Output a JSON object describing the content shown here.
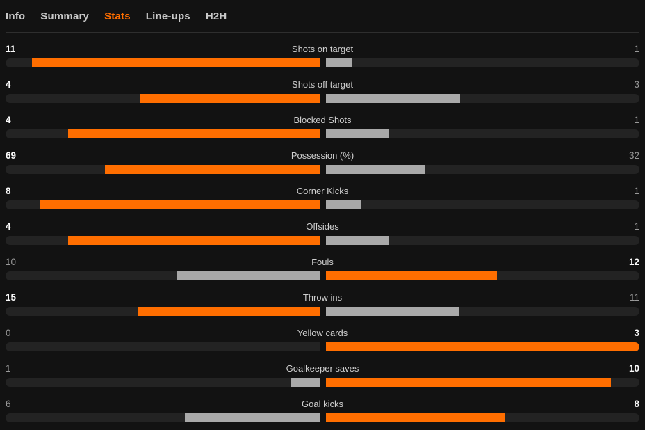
{
  "tabs": [
    {
      "label": "Info",
      "active": false
    },
    {
      "label": "Summary",
      "active": false
    },
    {
      "label": "Stats",
      "active": true
    },
    {
      "label": "Line-ups",
      "active": false
    },
    {
      "label": "H2H",
      "active": false
    }
  ],
  "stats": {
    "rows": [
      {
        "label": "Shots on target",
        "home": 11,
        "away": 1
      },
      {
        "label": "Shots off target",
        "home": 4,
        "away": 3
      },
      {
        "label": "Blocked Shots",
        "home": 4,
        "away": 1
      },
      {
        "label": "Possession (%)",
        "home": 69,
        "away": 32
      },
      {
        "label": "Corner Kicks",
        "home": 8,
        "away": 1
      },
      {
        "label": "Offsides",
        "home": 4,
        "away": 1
      },
      {
        "label": "Fouls",
        "home": 10,
        "away": 12
      },
      {
        "label": "Throw ins",
        "home": 15,
        "away": 11
      },
      {
        "label": "Yellow cards",
        "home": 0,
        "away": 3
      },
      {
        "label": "Goalkeeper saves",
        "home": 1,
        "away": 10
      },
      {
        "label": "Goal kicks",
        "home": 6,
        "away": 8
      }
    ]
  },
  "colors": {
    "background": "#121212",
    "track": "#232323",
    "divider": "#2e2e2e",
    "accent_orange": "#ff6e00",
    "bar_gray": "#a9a9a9",
    "label_text": "#cecece",
    "winner_text": "#fafafa",
    "loser_text": "#9a9a9a",
    "tab_inactive": "#c9c9c9"
  }
}
